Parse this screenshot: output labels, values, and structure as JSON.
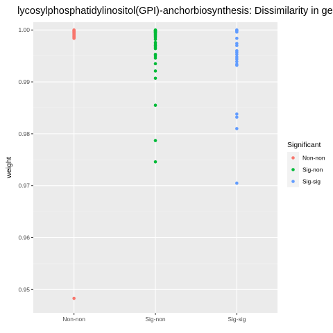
{
  "chart_data": {
    "type": "scatter",
    "title": "lycosylphosphatidylinositol(GPI)-anchorbiosynthesis: Dissimilarity in gene-pair",
    "xlabel": "",
    "ylabel": "weight",
    "categories": [
      "Non-non",
      "Sig-non",
      "Sig-sig"
    ],
    "ylim": [
      0.9455,
      1.0015
    ],
    "yticks": [
      0.95,
      0.96,
      0.97,
      0.98,
      0.99,
      1.0
    ],
    "ytick_labels": [
      "0.95",
      "0.96",
      "0.97",
      "0.98",
      "0.99",
      "1.00"
    ],
    "grid": true,
    "legend": {
      "title": "Significant",
      "position": "right"
    },
    "series": [
      {
        "name": "Non-non",
        "color": "#F8766D",
        "category": "Non-non",
        "values": [
          1.0,
          0.99995,
          0.9999,
          0.99985,
          0.9998,
          0.9997,
          0.99965,
          0.9996,
          0.9995,
          0.99945,
          0.9994,
          0.9993,
          0.9992,
          0.9991,
          0.999,
          0.99885,
          0.9988,
          0.9987,
          0.9986,
          0.9985,
          0.9984,
          0.9483
        ]
      },
      {
        "name": "Sig-non",
        "color": "#00BA38",
        "category": "Sig-non",
        "values": [
          1.0,
          0.99995,
          0.9999,
          0.99985,
          0.9998,
          0.9997,
          0.9996,
          0.9995,
          0.9994,
          0.9992,
          0.999,
          0.9988,
          0.9985,
          0.9982,
          0.9976,
          0.9973,
          0.997,
          0.9967,
          0.9964,
          0.9953,
          0.995,
          0.9946,
          0.9935,
          0.9921,
          0.9907,
          0.9855,
          0.9787,
          0.9746
        ]
      },
      {
        "name": "Sig-sig",
        "color": "#619CFF",
        "category": "Sig-sig",
        "values": [
          1.0,
          0.99995,
          0.9999,
          0.99985,
          0.9998,
          0.9996,
          0.9984,
          0.9974,
          0.997,
          0.996,
          0.9957,
          0.9953,
          0.9948,
          0.9944,
          0.9939,
          0.9934,
          0.9932,
          0.9838,
          0.9832,
          0.981,
          0.9705
        ]
      }
    ]
  }
}
